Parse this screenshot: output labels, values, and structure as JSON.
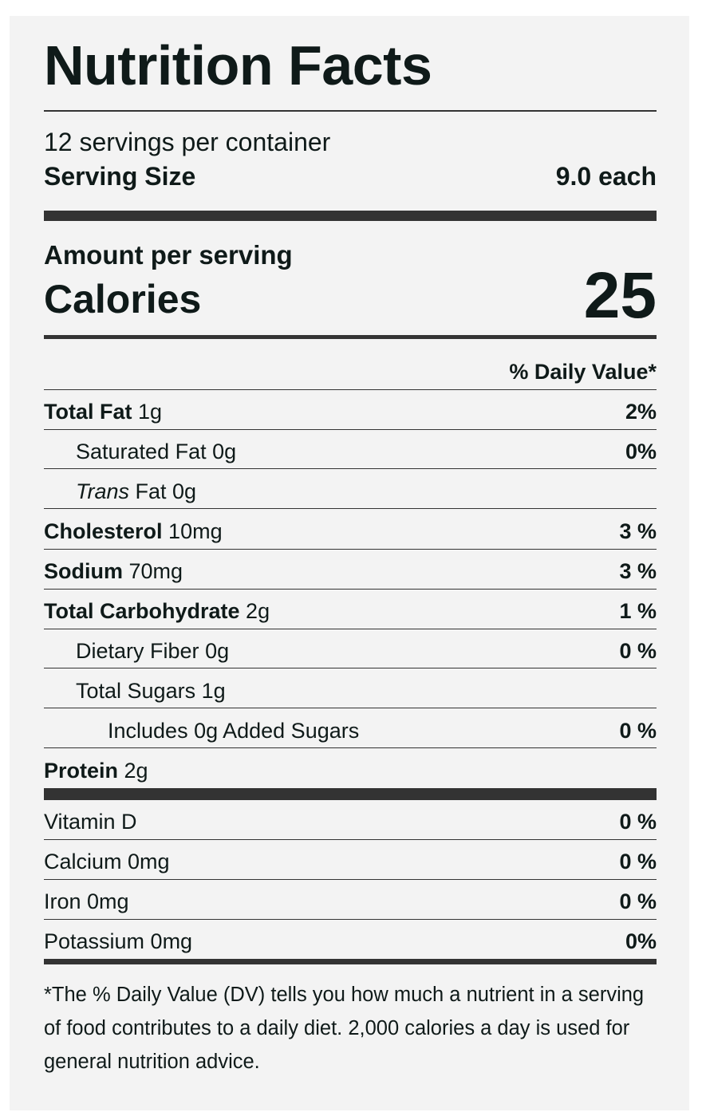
{
  "title": "Nutrition Facts",
  "servings": "12 servings per container",
  "serving_size": {
    "label": "Serving Size",
    "value": "9.0 each"
  },
  "amount_per_serving": "Amount per serving",
  "calories": {
    "label": "Calories",
    "value": 25
  },
  "daily_value_header": "% Daily Value*",
  "nutrients": [
    {
      "name": "Total Fat",
      "amount": "1g",
      "dv": "2%"
    },
    {
      "name": "Saturated Fat",
      "amount": "0g",
      "dv": "0%"
    },
    {
      "name": "Trans",
      "amount": "Fat 0g"
    },
    {
      "name": "Cholesterol",
      "amount": "10mg",
      "dv": "3 %"
    },
    {
      "name": "Sodium",
      "amount": "70mg",
      "dv": "3 %"
    },
    {
      "name": "Total Carbohydrate",
      "amount": "2g",
      "dv": "1 %"
    },
    {
      "name": "Dietary Fiber",
      "amount": "0g",
      "dv": "0 %"
    },
    {
      "name": "Total Sugars",
      "amount": "1g"
    },
    {
      "name": "Includes 0g Added Sugars",
      "dv": "0 %"
    },
    {
      "name": "Protein",
      "amount": "2g"
    }
  ],
  "vitamins": [
    {
      "name": "Vitamin D",
      "dv": "0 %"
    },
    {
      "name": "Calcium 0mg",
      "dv": "0 %"
    },
    {
      "name": "Iron 0mg",
      "dv": "0 %"
    },
    {
      "name": "Potassium 0mg",
      "dv": "0%"
    }
  ],
  "footnote": "*The % Daily Value (DV) tells you how much a nutrient in a serving of food contributes to a daily diet. 2,000 calories a day is used for general nutrition advice."
}
